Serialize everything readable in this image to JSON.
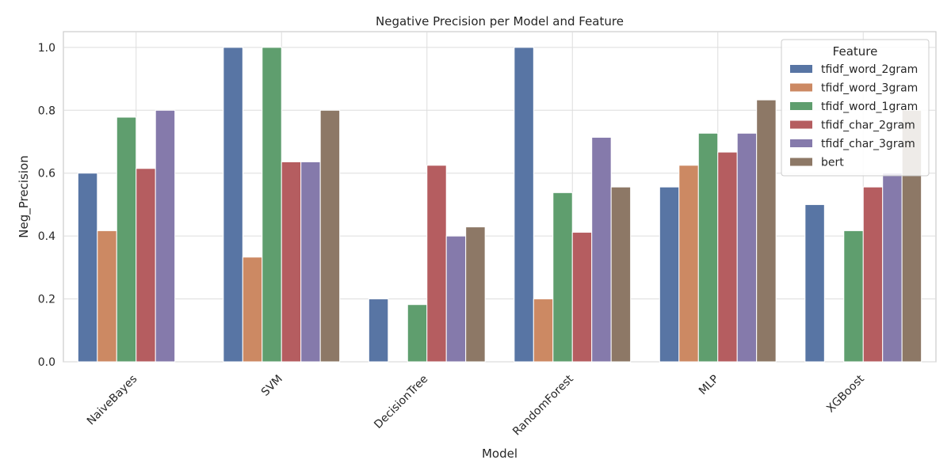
{
  "chart_data": {
    "type": "bar",
    "title": "Negative Precision per Model and Feature",
    "xlabel": "Model",
    "ylabel": "Neg_Precision",
    "ylim": [
      0,
      1.05
    ],
    "yticks": [
      "0.0",
      "0.2",
      "0.4",
      "0.6",
      "0.8",
      "1.0"
    ],
    "grid": true,
    "legend": {
      "title": "Feature",
      "placement": "top-right"
    },
    "categories": [
      "NaiveBayes",
      "SVM",
      "DecisionTree",
      "RandomForest",
      "MLP",
      "XGBoost"
    ],
    "series": [
      {
        "name": "tfidf_word_2gram",
        "color": "#5875a4",
        "values": [
          0.6,
          1.0,
          0.2,
          1.0,
          0.556,
          0.5
        ]
      },
      {
        "name": "tfidf_word_3gram",
        "color": "#cc8963",
        "values": [
          0.417,
          0.333,
          0.0,
          0.2,
          0.625,
          0.0
        ]
      },
      {
        "name": "tfidf_word_1gram",
        "color": "#5f9e6e",
        "values": [
          0.778,
          1.0,
          0.182,
          0.538,
          0.727,
          0.417
        ]
      },
      {
        "name": "tfidf_char_2gram",
        "color": "#b55d60",
        "values": [
          0.615,
          0.636,
          0.625,
          0.412,
          0.667,
          0.556
        ]
      },
      {
        "name": "tfidf_char_3gram",
        "color": "#857aab",
        "values": [
          0.8,
          0.636,
          0.4,
          0.714,
          0.727,
          0.6
        ]
      },
      {
        "name": "bert",
        "color": "#8d7866",
        "values": [
          0.0,
          0.8,
          0.429,
          0.556,
          0.833,
          0.8
        ]
      }
    ]
  }
}
